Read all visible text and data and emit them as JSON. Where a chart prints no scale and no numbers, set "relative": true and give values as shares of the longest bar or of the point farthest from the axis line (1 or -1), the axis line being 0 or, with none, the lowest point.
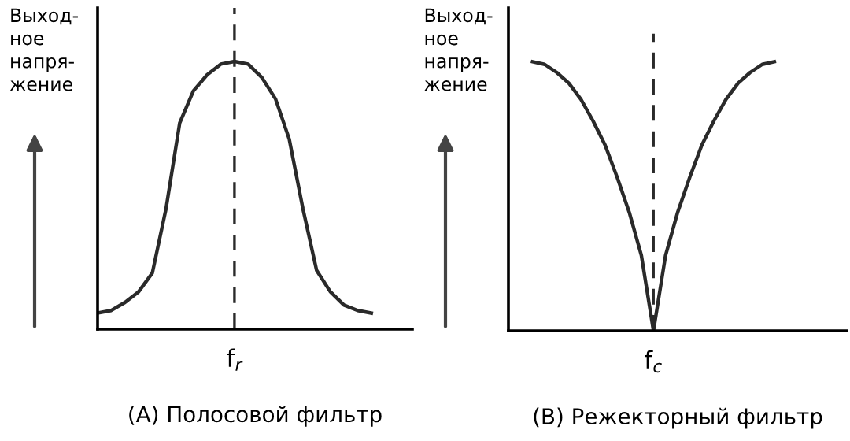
{
  "chart_data": [
    {
      "type": "line",
      "relative": true,
      "title": "(A) Полосовой фильтр",
      "ylabel": "Выход-\nное\nнапря-\nжение",
      "categories": [
        null,
        null,
        null,
        null,
        null,
        null,
        null,
        null,
        null,
        null,
        null,
        null,
        null,
        null,
        null,
        null,
        null,
        null,
        null,
        null,
        null,
        null,
        null,
        null
      ],
      "series": [
        {
          "color": "#2a2a2a",
          "values": [
            0.06,
            0.07,
            0.1,
            0.14,
            0.21,
            0.45,
            0.77,
            0.89,
            0.95,
            0.99,
            1,
            0.99,
            0.94,
            0.86,
            0.71,
            0.45,
            0.22,
            0.14,
            0.09,
            0.07,
            0.06,
            null,
            null,
            null
          ]
        }
      ],
      "annotations": [
        "f$_{r}$"
      ],
      "grid": false,
      "legend": false
    },
    {
      "type": "line",
      "relative": true,
      "title": "(B) Режекторный фильтр",
      "ylabel": "Выход-\nное\nнапря-\nжение",
      "categories": [
        null,
        null,
        null,
        null,
        null,
        null,
        null,
        null,
        null,
        null,
        null,
        null,
        null,
        null,
        null,
        null,
        null,
        null,
        null,
        null,
        null,
        null,
        null,
        null,
        null,
        null,
        null,
        null,
        null
      ],
      "series": [
        {
          "color": "#2a2a2a",
          "values": [
            null,
            null,
            1,
            0.99,
            0.96,
            0.92,
            0.86,
            0.78,
            0.69,
            0.57,
            0.44,
            0.28,
            0,
            0.28,
            0.44,
            0.57,
            0.69,
            0.78,
            0.86,
            0.92,
            0.96,
            0.99,
            1,
            null,
            null,
            null,
            null,
            null,
            null
          ]
        }
      ],
      "annotations": [
        "f$_{c}$"
      ],
      "grid": false,
      "legend": false
    }
  ]
}
